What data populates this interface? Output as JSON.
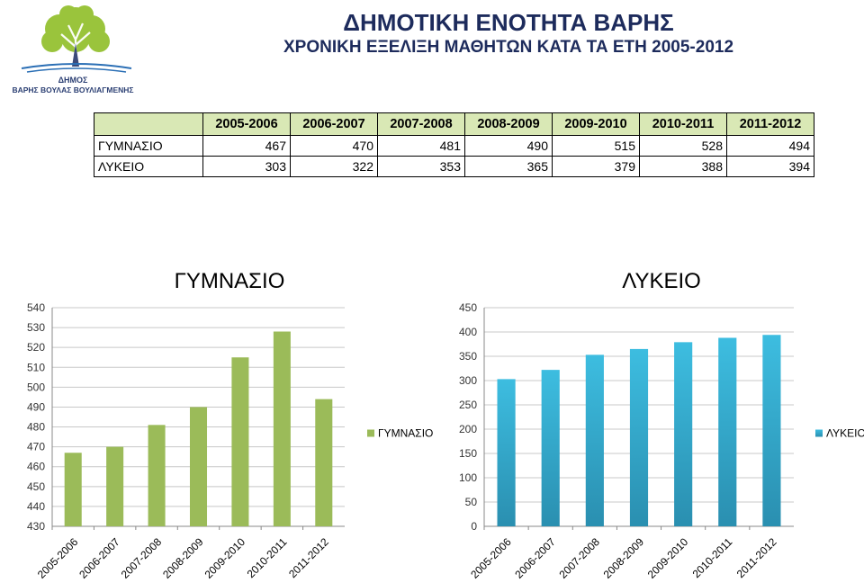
{
  "header": {
    "logo_line1": "ΔΗΜΟΣ",
    "logo_line2": "ΒΑΡΗΣ ΒΟΥΛΑΣ ΒΟΥΛΙΑΓΜΕΝΗΣ",
    "title": "ΔΗΜΟΤΙΚΗ ΕΝΟΤΗΤΑ ΒΑΡΗΣ",
    "subtitle": "ΧΡΟΝΙΚΗ ΕΞΕΛΙΞΗ ΜΑΘΗΤΩΝ ΚΑΤΑ ΤΑ ΕΤΗ 2005-2012"
  },
  "colors": {
    "brand": "#1d2b5c",
    "logo_tree": "#9ac43c",
    "gymnasio": "#9bbb59",
    "lykeio": "#31b0d5",
    "table_header": "#d9e8b5"
  },
  "table": {
    "columns": [
      "2005-2006",
      "2006-2007",
      "2007-2008",
      "2008-2009",
      "2009-2010",
      "2010-2011",
      "2011-2012"
    ],
    "rows": [
      {
        "label": "ΓΥΜΝΑΣΙΟ",
        "values": [
          "467",
          "470",
          "481",
          "490",
          "515",
          "528",
          "494"
        ]
      },
      {
        "label": "ΛΥΚΕΙΟ",
        "values": [
          "303",
          "322",
          "353",
          "365",
          "379",
          "388",
          "394"
        ]
      }
    ]
  },
  "chart_data": [
    {
      "type": "bar",
      "title": "ΓΥΜΝΑΣΙΟ",
      "categories": [
        "2005-2006",
        "2006-2007",
        "2007-2008",
        "2008-2009",
        "2009-2010",
        "2010-2011",
        "2011-2012"
      ],
      "series": [
        {
          "name": "ΓΥΜΝΑΣΙΟ",
          "values": [
            467,
            470,
            481,
            490,
            515,
            528,
            494
          ]
        }
      ],
      "ylim": [
        430,
        540
      ],
      "yticks": [
        430,
        440,
        450,
        460,
        470,
        480,
        490,
        500,
        510,
        520,
        530,
        540
      ],
      "grid": true,
      "legend": "right",
      "color": "#9bbb59"
    },
    {
      "type": "bar",
      "title": "ΛΥΚΕΙΟ",
      "categories": [
        "2005-2006",
        "2006-2007",
        "2007-2008",
        "2008-2009",
        "2009-2010",
        "2010-2011",
        "2011-2012"
      ],
      "series": [
        {
          "name": "ΛΥΚΕΙΟ",
          "values": [
            303,
            322,
            353,
            365,
            379,
            388,
            394
          ]
        }
      ],
      "ylim": [
        0,
        450
      ],
      "yticks": [
        0,
        50,
        100,
        150,
        200,
        250,
        300,
        350,
        400,
        450
      ],
      "grid": true,
      "legend": "right",
      "color": "#31b0d5"
    }
  ]
}
